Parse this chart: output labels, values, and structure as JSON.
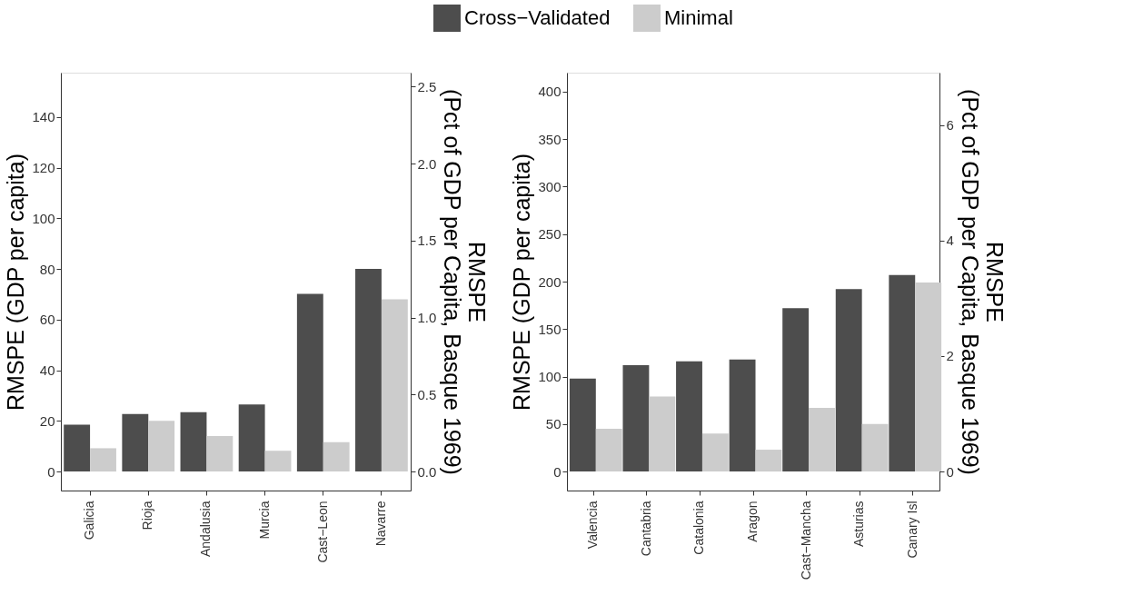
{
  "chart_data": [
    {
      "type": "bar",
      "categories": [
        "Galicia",
        "Rioja",
        "Andalusia",
        "Murcia",
        "Cast−Leon",
        "Navarre"
      ],
      "series": [
        {
          "name": "Cross−Validated",
          "color": "#4d4d4d",
          "values": [
            18.5,
            22.7,
            23.4,
            26.5,
            70.2,
            80
          ]
        },
        {
          "name": "Minimal",
          "color": "#cccccc",
          "values": [
            9.2,
            20,
            14,
            8.2,
            11.6,
            68
          ]
        }
      ],
      "ylabel": "RMSPE (GDP per capita)",
      "y2label": "RMSPE\n(Pct of GDP per Capita, Basque 1969)",
      "ylim": [
        -7.5,
        157.5
      ],
      "yticks": [
        0,
        20,
        40,
        60,
        80,
        100,
        120,
        140
      ],
      "y2lim": [
        -0.123,
        2.59
      ],
      "y2ticks": [
        {
          "value": 0,
          "label": "0.0"
        },
        0.5,
        {
          "value": 1,
          "label": "1.0"
        },
        1.5,
        {
          "value": 2,
          "label": "2.0"
        },
        2.5
      ],
      "grid": false,
      "legend": "top"
    },
    {
      "type": "bar",
      "categories": [
        "Valencia",
        "Cantabria",
        "Catalonia",
        "Aragon",
        "Cast−Mancha",
        "Asturias",
        "Canary Isl"
      ],
      "series": [
        {
          "name": "Cross−Validated",
          "color": "#4d4d4d",
          "values": [
            98,
            112,
            116,
            118,
            172,
            192,
            207
          ]
        },
        {
          "name": "Minimal",
          "color": "#cccccc",
          "values": [
            45,
            79,
            40,
            23,
            67,
            50,
            199
          ]
        }
      ],
      "ylabel": "RMSPE (GDP per capita)",
      "y2label": "RMSPE\n(Pct of GDP per Capita, Basque 1969)",
      "ylim": [
        -20,
        420
      ],
      "yticks": [
        0,
        50,
        100,
        150,
        200,
        250,
        300,
        350,
        400
      ],
      "y2lim": [
        -0.33,
        6.91
      ],
      "y2ticks": [
        0,
        2,
        4,
        6
      ],
      "grid": false,
      "legend": "top"
    }
  ]
}
